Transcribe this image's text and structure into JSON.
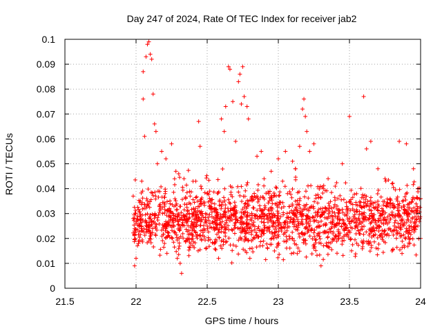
{
  "chart_data": {
    "type": "scatter",
    "title": "Day 247 of 2024, Rate Of TEC Index for receiver jab2",
    "xlabel": "GPS time / hours",
    "ylabel": "ROTI / TECUs",
    "xlim": [
      21.5,
      24
    ],
    "ylim": [
      0,
      0.1
    ],
    "x_ticks": [
      "21.5",
      "22",
      "22.5",
      "23",
      "23.5",
      "24"
    ],
    "y_ticks": [
      "0",
      "0.01",
      "0.02",
      "0.03",
      "0.04",
      "0.05",
      "0.06",
      "0.07",
      "0.08",
      "0.09",
      "0.1"
    ],
    "grid": true,
    "legend": "none",
    "marker": "plus",
    "series_color": "#ff0000",
    "series": [
      {
        "points": [
          [
            21.98,
            0.037
          ],
          [
            21.98,
            0.028
          ],
          [
            21.99,
            0.009
          ],
          [
            22.0,
            0.012
          ],
          [
            22.01,
            0.029
          ],
          [
            22.02,
            0.025
          ],
          [
            22.03,
            0.035
          ],
          [
            22.04,
            0.043
          ],
          [
            22.05,
            0.087
          ],
          [
            22.05,
            0.076
          ],
          [
            22.06,
            0.061
          ],
          [
            22.07,
            0.093
          ],
          [
            22.08,
            0.098
          ],
          [
            22.09,
            0.099
          ],
          [
            22.1,
            0.094
          ],
          [
            22.11,
            0.092
          ],
          [
            22.12,
            0.078
          ],
          [
            22.13,
            0.066
          ],
          [
            22.14,
            0.063
          ],
          [
            22.15,
            0.05
          ],
          [
            22.18,
            0.055
          ],
          [
            22.21,
            0.052
          ],
          [
            22.25,
            0.058
          ],
          [
            22.28,
            0.047
          ],
          [
            22.3,
            0.046
          ],
          [
            22.32,
            0.006
          ],
          [
            22.31,
            0.01
          ],
          [
            22.29,
            0.012
          ],
          [
            22.36,
            0.02
          ],
          [
            22.38,
            0.037
          ],
          [
            22.42,
            0.043
          ],
          [
            22.44,
            0.067
          ],
          [
            22.45,
            0.057
          ],
          [
            22.46,
            0.04
          ],
          [
            22.5,
            0.038
          ],
          [
            22.55,
            0.032
          ],
          [
            22.58,
            0.012
          ],
          [
            22.6,
            0.068
          ],
          [
            22.62,
            0.063
          ],
          [
            22.63,
            0.073
          ],
          [
            22.65,
            0.089
          ],
          [
            22.66,
            0.088
          ],
          [
            22.68,
            0.075
          ],
          [
            22.7,
            0.059
          ],
          [
            22.72,
            0.083
          ],
          [
            22.73,
            0.086
          ],
          [
            22.74,
            0.074
          ],
          [
            22.75,
            0.089
          ],
          [
            22.76,
            0.077
          ],
          [
            22.78,
            0.073
          ],
          [
            22.79,
            0.068
          ],
          [
            22.8,
            0.012
          ],
          [
            22.85,
            0.053
          ],
          [
            22.88,
            0.055
          ],
          [
            22.9,
            0.044
          ],
          [
            22.95,
            0.047
          ],
          [
            23.0,
            0.052
          ],
          [
            23.03,
            0.043
          ],
          [
            23.05,
            0.055
          ],
          [
            23.1,
            0.051
          ],
          [
            23.12,
            0.048
          ],
          [
            23.15,
            0.057
          ],
          [
            23.17,
            0.072
          ],
          [
            23.18,
            0.076
          ],
          [
            23.19,
            0.069
          ],
          [
            23.2,
            0.063
          ],
          [
            23.22,
            0.055
          ],
          [
            23.25,
            0.058
          ],
          [
            23.3,
            0.009
          ],
          [
            23.35,
            0.044
          ],
          [
            23.4,
            0.041
          ],
          [
            23.45,
            0.05
          ],
          [
            23.5,
            0.069
          ],
          [
            23.55,
            0.038
          ],
          [
            23.6,
            0.077
          ],
          [
            23.62,
            0.056
          ],
          [
            23.65,
            0.059
          ],
          [
            23.7,
            0.048
          ],
          [
            23.75,
            0.044
          ],
          [
            23.8,
            0.042
          ],
          [
            23.85,
            0.059
          ],
          [
            23.9,
            0.058
          ],
          [
            23.95,
            0.048
          ],
          [
            23.98,
            0.04
          ],
          [
            24.0,
            0.036
          ],
          [
            22.1,
            0.022
          ],
          [
            22.2,
            0.018
          ],
          [
            22.3,
            0.027
          ],
          [
            22.4,
            0.021
          ],
          [
            22.5,
            0.025
          ],
          [
            22.6,
            0.019
          ],
          [
            22.7,
            0.03
          ],
          [
            22.8,
            0.024
          ],
          [
            22.9,
            0.022
          ],
          [
            23.0,
            0.028
          ],
          [
            23.1,
            0.02
          ],
          [
            23.2,
            0.026
          ],
          [
            23.3,
            0.018
          ],
          [
            23.4,
            0.029
          ],
          [
            23.5,
            0.023
          ],
          [
            23.6,
            0.019
          ],
          [
            23.7,
            0.027
          ],
          [
            23.8,
            0.015
          ],
          [
            23.9,
            0.024
          ],
          [
            24.0,
            0.02
          ]
        ]
      }
    ]
  }
}
